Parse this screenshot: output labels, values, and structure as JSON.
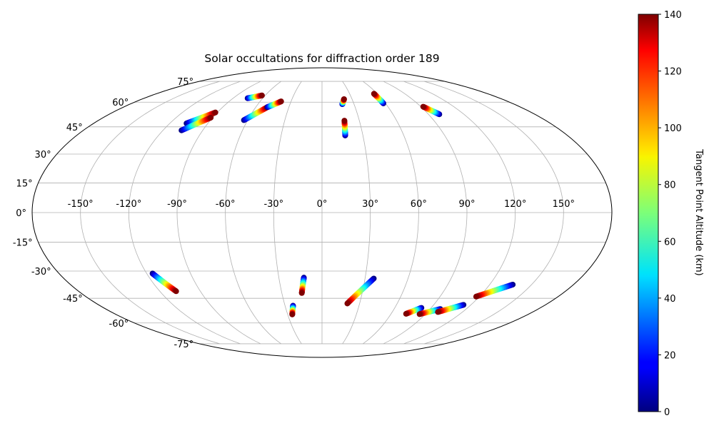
{
  "chart_data": {
    "type": "scatter",
    "projection": "mollweide",
    "title": "Solar occultations for diffraction order 189",
    "grid": true,
    "lon_ticks": [
      -150,
      -120,
      -90,
      -60,
      -30,
      0,
      30,
      60,
      90,
      120,
      150
    ],
    "lon_tick_labels": [
      "-150°",
      "-120°",
      "-90°",
      "-60°",
      "-30°",
      "0°",
      "30°",
      "60°",
      "90°",
      "120°",
      "150°"
    ],
    "lat_ticks": [
      -75,
      -60,
      -45,
      -30,
      -15,
      0,
      15,
      30,
      45,
      60,
      75
    ],
    "lat_tick_labels": [
      "-75°",
      "-60°",
      "-45°",
      "-30°",
      "-15°",
      "0°",
      "15°",
      "30°",
      "45°",
      "60°",
      "75°"
    ],
    "colorbar": {
      "label": "Tangent Point Altitude (km)",
      "colormap": "jet",
      "range": [
        0,
        140
      ],
      "ticks": [
        0,
        20,
        40,
        60,
        80,
        100,
        120,
        140
      ],
      "tick_labels": [
        "0",
        "20",
        "40",
        "60",
        "80",
        "100",
        "120",
        "140"
      ]
    },
    "series": [
      {
        "points": [
          {
            "lon": -106.8,
            "lat": 47.0,
            "alt": 0
          },
          {
            "lon": -91.6,
            "lat": 53.5,
            "alt": 140
          }
        ]
      },
      {
        "points": [
          {
            "lon": -106.0,
            "lat": 43.0,
            "alt": 0
          },
          {
            "lon": -91.5,
            "lat": 50.4,
            "alt": 140
          }
        ]
      },
      {
        "points": [
          {
            "lon": -75.3,
            "lat": 62.6,
            "alt": 0
          },
          {
            "lon": -63.4,
            "lat": 64.5,
            "alt": 140
          }
        ]
      },
      {
        "points": [
          {
            "lon": -63.0,
            "lat": 48.9,
            "alt": 0
          },
          {
            "lon": -49.5,
            "lat": 56.8,
            "alt": 140
          }
        ]
      },
      {
        "points": [
          {
            "lon": -49.5,
            "lat": 56.8,
            "alt": 0
          },
          {
            "lon": -39.6,
            "lat": 60.5,
            "alt": 140
          }
        ]
      },
      {
        "points": [
          {
            "lon": 17.0,
            "lat": 40.1,
            "alt": 0
          },
          {
            "lon": 18.0,
            "lat": 48.6,
            "alt": 140
          }
        ]
      },
      {
        "points": [
          {
            "lon": 19.0,
            "lat": 58.7,
            "alt": 0
          },
          {
            "lon": 22.0,
            "lat": 62.0,
            "alt": 140
          }
        ]
      },
      {
        "points": [
          {
            "lon": 58.0,
            "lat": 59.2,
            "alt": 0
          },
          {
            "lon": 56.5,
            "lat": 65.7,
            "alt": 140
          }
        ]
      },
      {
        "points": [
          {
            "lon": 99.2,
            "lat": 52.4,
            "alt": 0
          },
          {
            "lon": 92.1,
            "lat": 57.1,
            "alt": 140
          }
        ]
      },
      {
        "points": [
          {
            "lon": -116.0,
            "lat": -31.3,
            "alt": 0
          },
          {
            "lon": -107.9,
            "lat": -41.0,
            "alt": 140
          }
        ]
      },
      {
        "points": [
          {
            "lon": -12.6,
            "lat": -33.5,
            "alt": 0
          },
          {
            "lon": -15.1,
            "lat": -42.0,
            "alt": 140
          }
        ]
      },
      {
        "points": [
          {
            "lon": -23.5,
            "lat": -49.3,
            "alt": 0
          },
          {
            "lon": -26.0,
            "lat": -54.6,
            "alt": 140
          }
        ]
      },
      {
        "points": [
          {
            "lon": 36.1,
            "lat": -34.0,
            "alt": 0
          },
          {
            "lon": 20.2,
            "lat": -48.0,
            "alt": 140
          }
        ]
      },
      {
        "points": [
          {
            "lon": 82.0,
            "lat": -50.6,
            "alt": 0
          },
          {
            "lon": 73.0,
            "lat": -54.2,
            "alt": 140
          }
        ]
      },
      {
        "points": [
          {
            "lon": 98.5,
            "lat": -51.3,
            "alt": 0
          },
          {
            "lon": 85.0,
            "lat": -54.4,
            "alt": 140
          }
        ]
      },
      {
        "points": [
          {
            "lon": 114.0,
            "lat": -48.8,
            "alt": 0
          },
          {
            "lon": 99.0,
            "lat": -53.1,
            "alt": 140
          }
        ]
      },
      {
        "points": [
          {
            "lon": 136.5,
            "lat": -37.3,
            "alt": 0
          },
          {
            "lon": 117.5,
            "lat": -44.0,
            "alt": 140
          }
        ]
      }
    ]
  }
}
